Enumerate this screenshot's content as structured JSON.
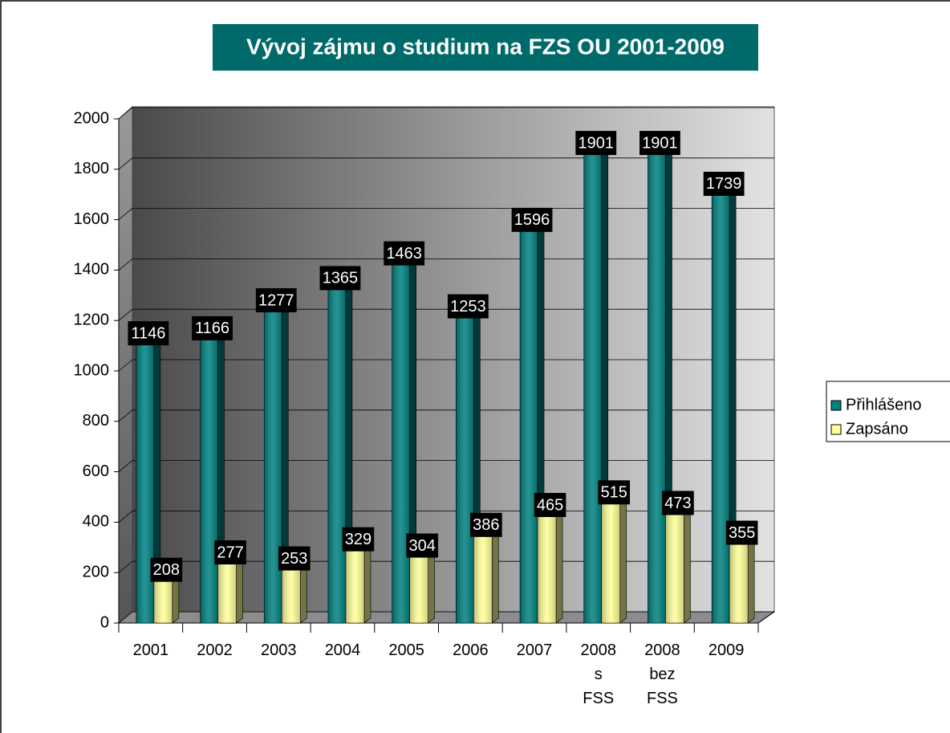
{
  "chart_data": {
    "type": "bar",
    "title": "Vývoj zájmu o studium na FZS OU 2001-2009",
    "categories": [
      "2001",
      "2002",
      "2003",
      "2004",
      "2005",
      "2006",
      "2007",
      "2008 s FSS",
      "2008 bez FSS",
      "2009"
    ],
    "series": [
      {
        "name": "Přihlášeno",
        "color": "#008080",
        "values": [
          1146,
          1166,
          1277,
          1365,
          1463,
          1253,
          1596,
          1901,
          1901,
          1739
        ]
      },
      {
        "name": "Zapsáno",
        "color": "#ffff99",
        "values": [
          208,
          277,
          253,
          329,
          304,
          386,
          465,
          515,
          473,
          355
        ]
      }
    ],
    "ylim": [
      0,
      2000
    ],
    "yticks": [
      0,
      200,
      400,
      600,
      800,
      1000,
      1200,
      1400,
      1600,
      1800,
      2000
    ],
    "grid": true,
    "legend": "right"
  }
}
